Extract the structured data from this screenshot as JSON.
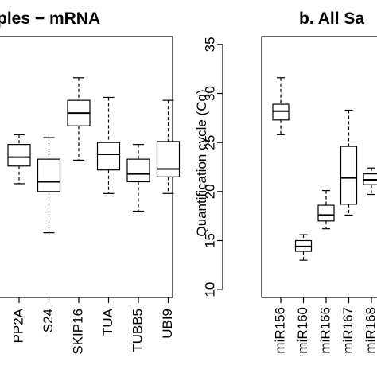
{
  "panels": [
    {
      "title": "ples − mRNA"
    },
    {
      "title": "b. All Sa",
      "ylabel": "Quantification cycle (Cq)"
    }
  ],
  "chart_data": [
    {
      "type": "box",
      "title": "ples − mRNA",
      "ylim": [
        9.2,
        35.8
      ],
      "categories": [
        "PP2A",
        "S24",
        "SKIP16",
        "TUA",
        "TUBB5",
        "UBI9"
      ],
      "boxes": [
        {
          "name": "PP2A",
          "whisker_low": 20.8,
          "q1": 22.6,
          "median": 23.5,
          "q3": 24.8,
          "whisker_high": 25.8
        },
        {
          "name": "S24",
          "whisker_low": 15.8,
          "q1": 20.0,
          "median": 21.0,
          "q3": 23.3,
          "whisker_high": 25.5
        },
        {
          "name": "SKIP16",
          "whisker_low": 23.2,
          "q1": 26.7,
          "median": 28.0,
          "q3": 29.3,
          "whisker_high": 31.6
        },
        {
          "name": "TUA",
          "whisker_low": 19.8,
          "q1": 22.2,
          "median": 23.8,
          "q3": 25.0,
          "whisker_high": 29.6
        },
        {
          "name": "TUBB5",
          "whisker_low": 18.0,
          "q1": 21.0,
          "median": 21.8,
          "q3": 23.3,
          "whisker_high": 24.8
        },
        {
          "name": "UBI9",
          "whisker_low": 19.8,
          "q1": 21.5,
          "median": 22.3,
          "q3": 25.1,
          "whisker_high": 29.3
        }
      ]
    },
    {
      "type": "box",
      "title": "b. All Sa",
      "ylabel": "Quantification cycle (Cq)",
      "ylim": [
        9.2,
        35.8
      ],
      "yticks": [
        10,
        15,
        20,
        25,
        30,
        35
      ],
      "categories": [
        "miR156",
        "miR160",
        "miR166",
        "miR167",
        "miR168"
      ],
      "boxes": [
        {
          "name": "miR156",
          "whisker_low": 25.8,
          "q1": 27.3,
          "median": 28.2,
          "q3": 28.9,
          "whisker_high": 31.6
        },
        {
          "name": "miR160",
          "whisker_low": 13.0,
          "q1": 13.9,
          "median": 14.4,
          "q3": 15.0,
          "whisker_high": 15.6
        },
        {
          "name": "miR166",
          "whisker_low": 16.2,
          "q1": 17.0,
          "median": 17.6,
          "q3": 18.6,
          "whisker_high": 20.1
        },
        {
          "name": "miR167",
          "whisker_low": 17.6,
          "q1": 18.7,
          "median": 21.4,
          "q3": 24.6,
          "whisker_high": 28.3
        },
        {
          "name": "miR168",
          "whisker_low": 19.7,
          "q1": 20.7,
          "median": 21.2,
          "q3": 21.8,
          "whisker_high": 22.4
        }
      ]
    }
  ]
}
